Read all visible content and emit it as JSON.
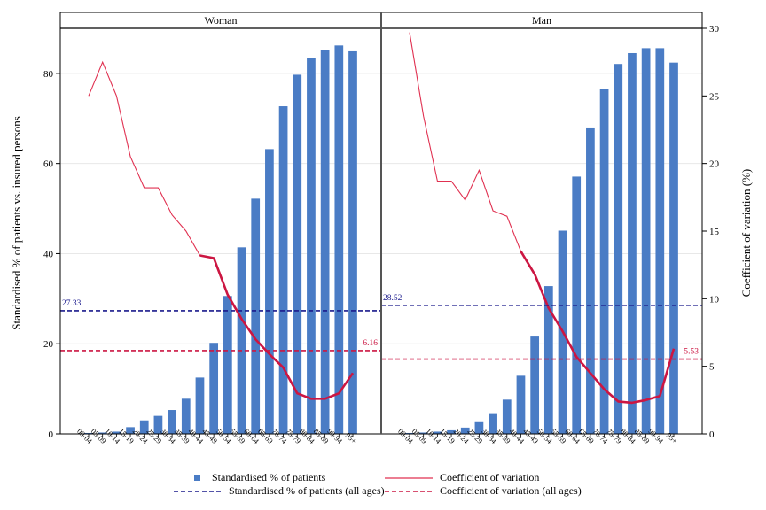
{
  "chart_data": {
    "type": "bar",
    "categories": [
      "00-04",
      "05-09",
      "10-14",
      "15-19",
      "20-24",
      "25-29",
      "30-34",
      "35-39",
      "40-44",
      "45-49",
      "50-54",
      "55-59",
      "60-64",
      "65-69",
      "70-74",
      "75-79",
      "80-84",
      "85-89",
      "90-94",
      "95+"
    ],
    "y_left": {
      "label": "Standardised % of patients vs. insured persons",
      "lim": [
        0,
        90
      ],
      "ticks": [
        0,
        20,
        40,
        60,
        80
      ]
    },
    "y_right": {
      "label": "Coefficient of variation (%)",
      "lim": [
        0,
        30
      ],
      "ticks": [
        0,
        5,
        10,
        15,
        20,
        25,
        30
      ]
    },
    "grid": true,
    "legend_position": "bottom",
    "legend": {
      "bars": "Standardised % of patients",
      "cv": "Coefficient of variation",
      "bars_all": "Standardised % of patients (all ages)",
      "cv_all": "Coefficient of variation (all ages)"
    },
    "panels": [
      {
        "title": "Woman",
        "values": [
          0.2,
          0.3,
          0.5,
          1.5,
          3.0,
          4.0,
          5.3,
          7.8,
          12.5,
          20.2,
          30.6,
          41.4,
          52.2,
          63.2,
          72.7,
          79.7,
          83.4,
          85.2,
          86.2,
          84.9
        ],
        "cv": [
          25.0,
          27.5,
          25.0,
          20.5,
          18.2,
          18.2,
          16.2,
          15.0,
          13.2,
          13.0,
          10.3,
          8.5,
          7.0,
          5.9,
          4.9,
          3.0,
          2.6,
          2.6,
          3.0,
          4.5
        ],
        "cv_emphasis_from": "40-44",
        "all_ages_pct": 27.33,
        "all_ages_pct_label": "27.33",
        "all_ages_cv": 6.16,
        "all_ages_cv_label": "6.16"
      },
      {
        "title": "Man",
        "values": [
          0.2,
          0.3,
          0.5,
          0.8,
          1.4,
          2.6,
          4.4,
          7.6,
          12.9,
          21.6,
          32.8,
          45.1,
          57.1,
          68.0,
          76.5,
          82.1,
          84.5,
          85.6,
          85.6,
          82.4
        ],
        "cv": [
          29.7,
          23.5,
          18.7,
          18.7,
          17.3,
          19.5,
          16.5,
          16.1,
          13.5,
          11.8,
          9.3,
          7.6,
          5.7,
          4.5,
          3.3,
          2.4,
          2.3,
          2.5,
          2.8,
          6.3
        ],
        "cv_emphasis_from": "40-44",
        "all_ages_pct": 28.52,
        "all_ages_pct_label": "28.52",
        "all_ages_cv": 5.53,
        "all_ages_cv_label": "5.53"
      }
    ],
    "colors": {
      "bar": "#4a7cc5",
      "cv_line": "#e03050",
      "cv_emphasis": "#cc1642",
      "ref_pct": "#1a1a8c",
      "ref_cv": "#cc1642",
      "ref_pct_label": "#1a1a8c",
      "ref_cv_label": "#cc1642",
      "grid": "#e8e8e8"
    }
  }
}
